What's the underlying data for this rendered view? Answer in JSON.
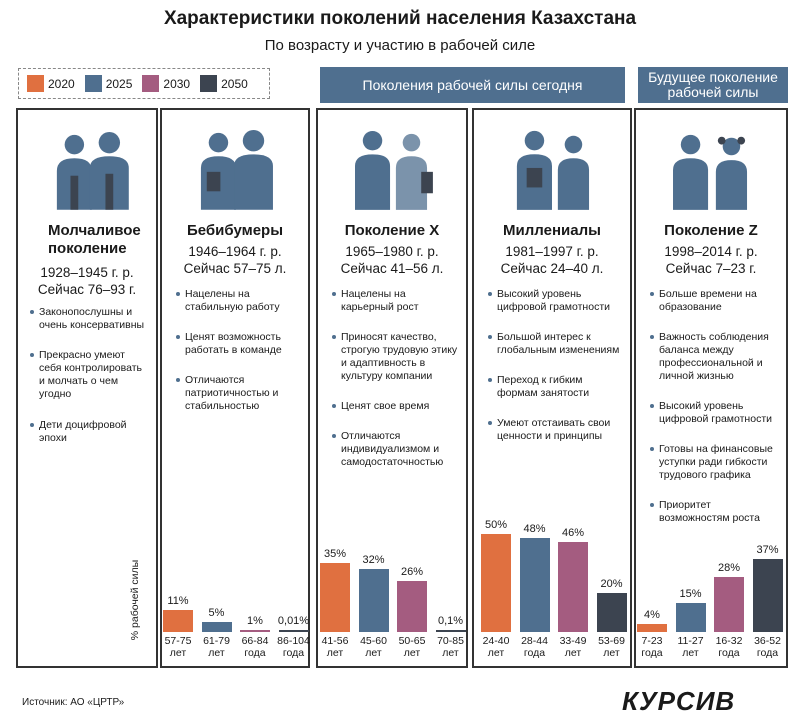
{
  "title": "Характеристики поколений населения Казахстана",
  "subtitle": "По возрасту и участию в рабочей силе",
  "legend": [
    {
      "label": "2020",
      "color": "#e07040"
    },
    {
      "label": "2025",
      "color": "#4f6f8f"
    },
    {
      "label": "2030",
      "color": "#a45c80"
    },
    {
      "label": "2050",
      "color": "#3c4450"
    }
  ],
  "banners": {
    "today": "Поколения рабочей силы сегодня",
    "future": "Будущее поколение рабочей силы"
  },
  "ylabel": "% рабочей силы",
  "generations": [
    {
      "name": "Молчаливое поколение",
      "years": "1928–1945 г. р.",
      "now": "Сейчас 76–93 г.",
      "traits": [
        "Законопослушны и очень консервативны",
        "Прекрасно умеют себя контролировать и молчать о чем угодно",
        "Дети доцифровой эпохи"
      ]
    },
    {
      "name": "Бебибумеры",
      "years": "1946–1964 г. р.",
      "now": "Сейчас 57–75 л.",
      "traits": [
        "Нацелены на стабильную работу",
        "Ценят возможность работать в команде",
        "Отличаются патриотичностью и стабильностью"
      ]
    },
    {
      "name": "Поколение X",
      "years": "1965–1980 г. р.",
      "now": "Сейчас 41–56 л.",
      "traits": [
        "Нацелены на карьерный рост",
        "Приносят качество, строгую трудовую этику и адаптивность в культуру компании",
        "Ценят свое время",
        "Отличаются индивидуализмом и самодостаточностью"
      ]
    },
    {
      "name": "Миллениалы",
      "years": "1981–1997 г. р.",
      "now": "Сейчас 24–40 л.",
      "traits": [
        "Высокий уровень цифровой грамотности",
        "Большой интерес к глобальным изменениям",
        "Переход к гибким формам занятости",
        "Умеют отстаивать свои ценности и принципы"
      ]
    },
    {
      "name": "Поколение Z",
      "years": "1998–2014 г. р.",
      "now": "Сейчас 7–23 г.",
      "traits": [
        "Больше времени на образование",
        "Важность соблюдения баланса между профессиональной и личной жизнью",
        "Высокий уровень цифровой грамотности",
        "Готовы на финансовые уступки ради гибкости трудового графика",
        "Приоритет возможностям роста"
      ]
    }
  ],
  "chart_data": {
    "type": "bar",
    "ylabel": "% рабочей силы",
    "series_names": [
      "2020",
      "2025",
      "2030",
      "2050"
    ],
    "groups": [
      {
        "generation": "Бебибумеры",
        "bars": [
          {
            "year": "2020",
            "value": 11,
            "label": "11%",
            "age": "57-75 лет"
          },
          {
            "year": "2025",
            "value": 5,
            "label": "5%",
            "age": "61-79 лет"
          },
          {
            "year": "2030",
            "value": 1,
            "label": "1%",
            "age": "66-84 года"
          },
          {
            "year": "2050",
            "value": 0.01,
            "label": "0,01%",
            "age": "86-104 года"
          }
        ]
      },
      {
        "generation": "Поколение X",
        "bars": [
          {
            "year": "2020",
            "value": 35,
            "label": "35%",
            "age": "41-56 лет"
          },
          {
            "year": "2025",
            "value": 32,
            "label": "32%",
            "age": "45-60 лет"
          },
          {
            "year": "2030",
            "value": 26,
            "label": "26%",
            "age": "50-65 лет"
          },
          {
            "year": "2050",
            "value": 0.1,
            "label": "0,1%",
            "age": "70-85 лет"
          }
        ]
      },
      {
        "generation": "Миллениалы",
        "bars": [
          {
            "year": "2020",
            "value": 50,
            "label": "50%",
            "age": "24-40 лет"
          },
          {
            "year": "2025",
            "value": 48,
            "label": "48%",
            "age": "28-44 года"
          },
          {
            "year": "2030",
            "value": 46,
            "label": "46%",
            "age": "33-49 лет"
          },
          {
            "year": "2050",
            "value": 20,
            "label": "20%",
            "age": "53-69 лет"
          }
        ]
      },
      {
        "generation": "Поколение Z",
        "bars": [
          {
            "year": "2020",
            "value": 4,
            "label": "4%",
            "age": "7-23 года"
          },
          {
            "year": "2025",
            "value": 15,
            "label": "15%",
            "age": "11-27 лет"
          },
          {
            "year": "2030",
            "value": 28,
            "label": "28%",
            "age": "16-32 года"
          },
          {
            "year": "2050",
            "value": 37,
            "label": "37%",
            "age": "36-52 года"
          }
        ]
      }
    ]
  },
  "source": "Источник: АО «ЦРТР»",
  "logo": "КУРСИВ"
}
